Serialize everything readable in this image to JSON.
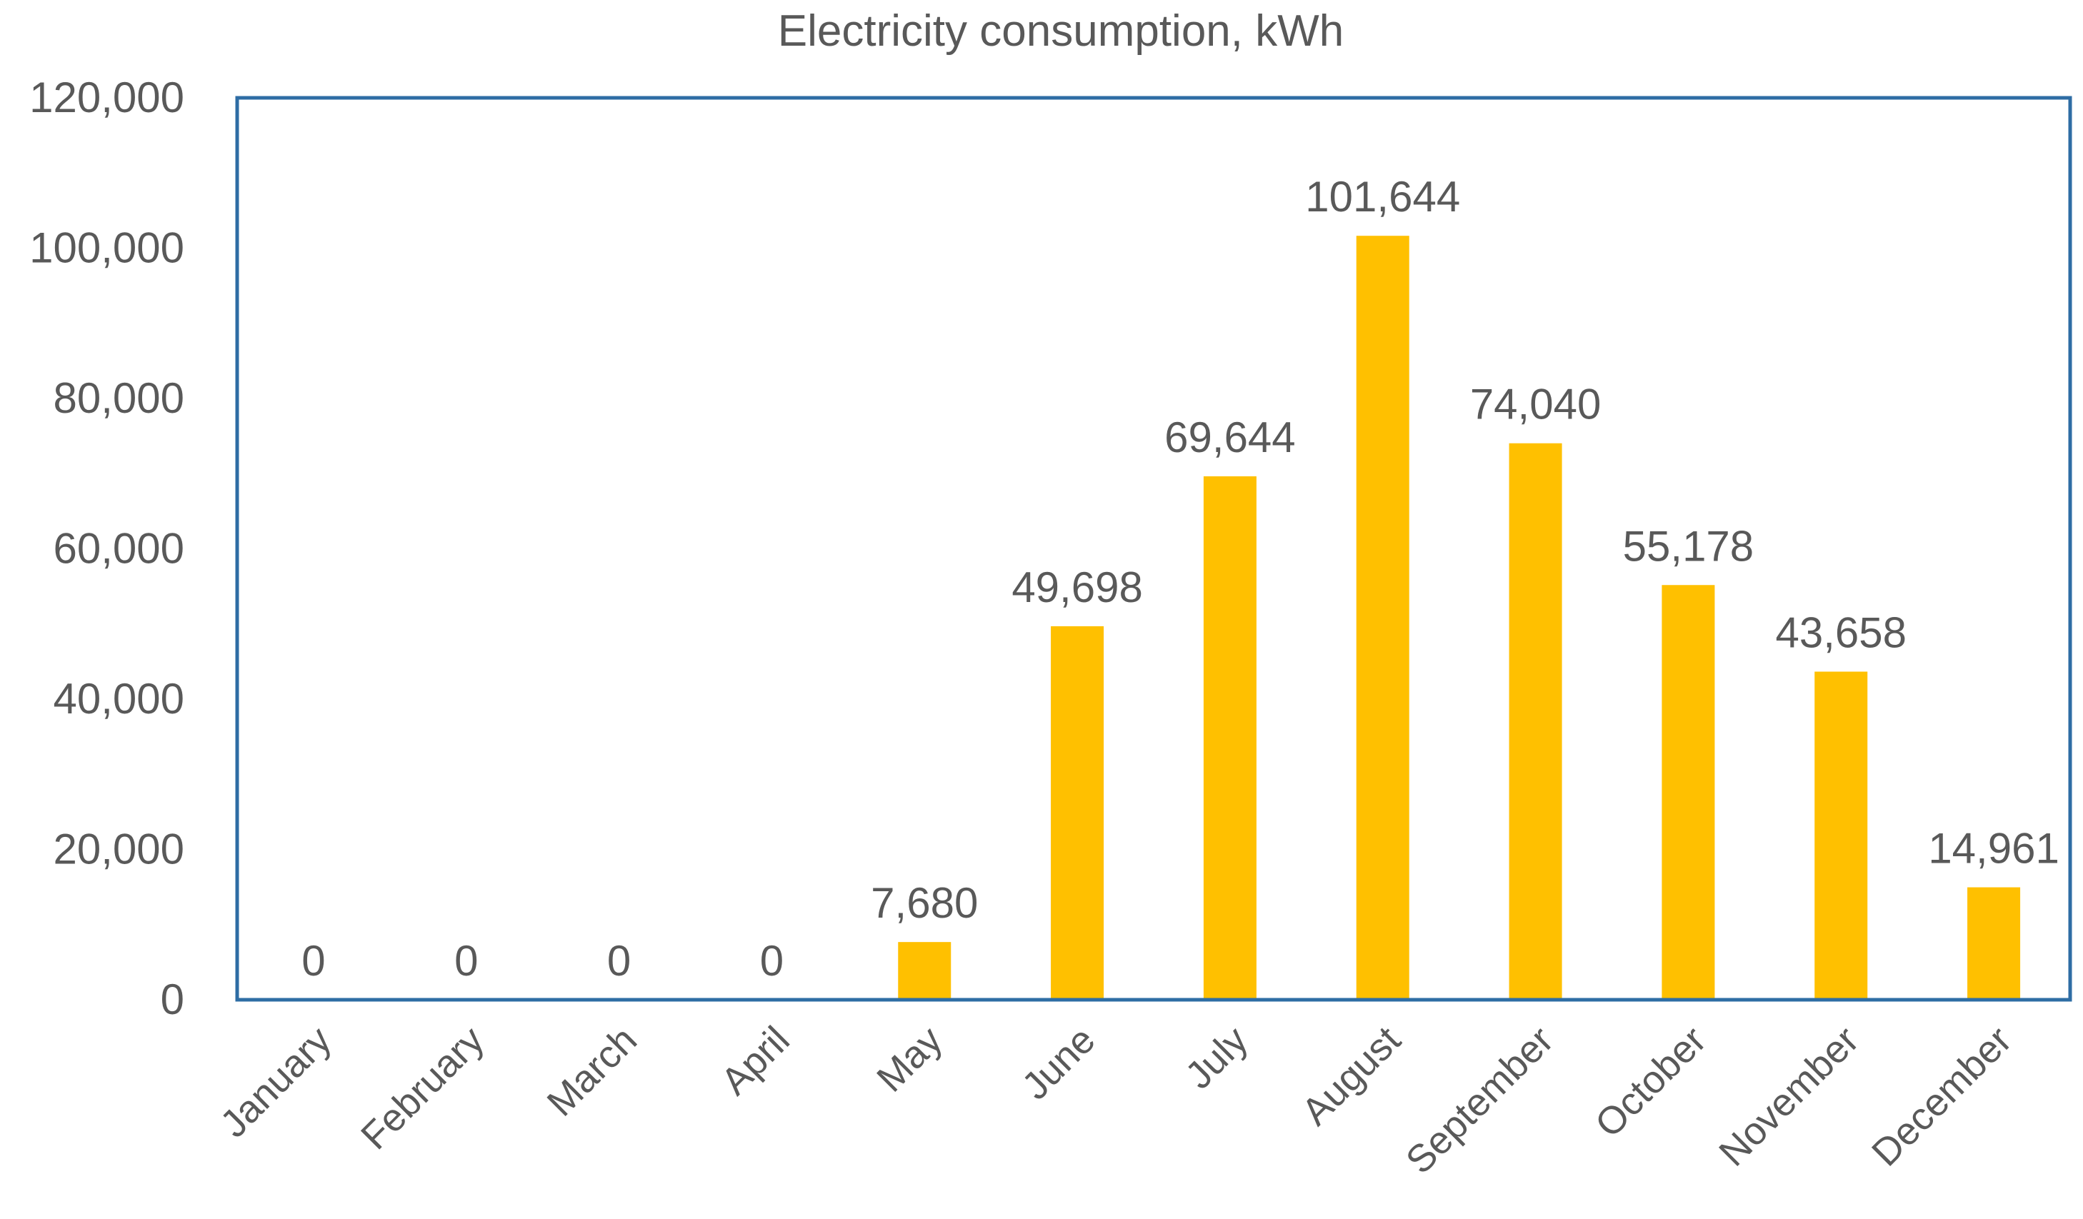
{
  "chart_data": {
    "type": "bar",
    "title": "Electricity consumption, kWh",
    "xlabel": "",
    "ylabel": "",
    "categories": [
      "January",
      "February",
      "March",
      "April",
      "May",
      "June",
      "July",
      "August",
      "September",
      "October",
      "November",
      "December"
    ],
    "values": [
      0,
      0,
      0,
      0,
      7680,
      49698,
      69644,
      101644,
      74040,
      55178,
      43658,
      14961
    ],
    "value_labels": [
      "0",
      "0",
      "0",
      "0",
      "7,680",
      "49,698",
      "69,644",
      "101,644",
      "74,040",
      "55,178",
      "43,658",
      "14,961"
    ],
    "ylim": [
      0,
      120000
    ],
    "y_ticks": [
      0,
      20000,
      40000,
      60000,
      80000,
      100000,
      120000
    ],
    "y_tick_labels": [
      "0",
      "20,000",
      "40,000",
      "60,000",
      "80,000",
      "100,000",
      "120,000"
    ],
    "grid": false,
    "legend": "none",
    "colors": {
      "bar": "#FFC000",
      "frame": "#2E6DA4",
      "text": "#595959"
    }
  }
}
